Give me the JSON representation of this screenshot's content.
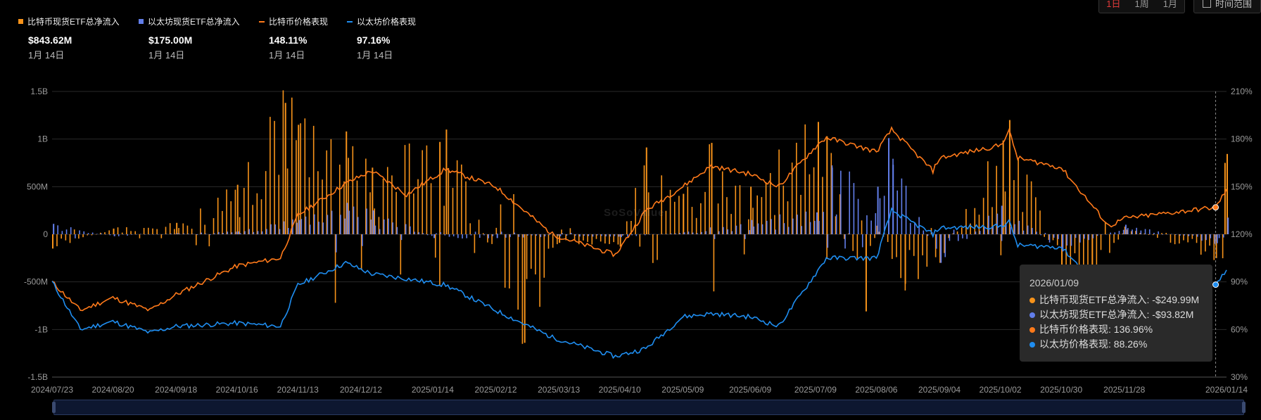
{
  "controls": {
    "range_buttons": [
      "1日",
      "1周",
      "1月"
    ],
    "time_button": "时间范围"
  },
  "legend": [
    {
      "label": "比特币现货ETF总净流入",
      "value": "$843.62M",
      "date": "1月 14日",
      "color": "#f7931a",
      "marker": "square"
    },
    {
      "label": "以太坊现货ETF总净流入",
      "value": "$175.00M",
      "date": "1月 14日",
      "color": "#627eea",
      "marker": "square"
    },
    {
      "label": "比特币价格表现",
      "value": "148.11%",
      "date": "1月 14日",
      "color": "#ff7a1a",
      "marker": "line"
    },
    {
      "label": "以太坊价格表现",
      "value": "97.16%",
      "date": "1月 14日",
      "color": "#1f8ef1",
      "marker": "line"
    }
  ],
  "watermark": "SoSoValue",
  "tooltip": {
    "date": "2026/01/09",
    "rows": [
      {
        "text": "比特币现货ETF总净流入: -$249.99M",
        "color": "#f7931a"
      },
      {
        "text": "以太坊现货ETF总净流入: -$93.82M",
        "color": "#627eea"
      },
      {
        "text": "比特币价格表现: 136.96%",
        "color": "#ff7a1a"
      },
      {
        "text": "以太坊价格表现: 88.26%",
        "color": "#1f8ef1"
      }
    ]
  },
  "chart_data": {
    "type": "bar",
    "x_ticks": [
      "2024/07/23",
      "2024/08/20",
      "2024/09/18",
      "2024/10/16",
      "2024/11/13",
      "2024/12/12",
      "2025/01/14",
      "2025/02/12",
      "2025/03/13",
      "2025/04/10",
      "2025/05/09",
      "2025/06/09",
      "2025/07/09",
      "2025/08/06",
      "2025/09/04",
      "2025/10/02",
      "2025/10/30",
      "2025/11/28",
      "2026/01/14"
    ],
    "y_left_ticks": [
      "1.5B",
      "1B",
      "500M",
      "0",
      "-500M",
      "-1B",
      "-1.5B"
    ],
    "y_left_range": [
      -1500,
      1500
    ],
    "y_left_unit": "M USD",
    "y_right_ticks": [
      "210%",
      "180%",
      "150%",
      "120%",
      "90%",
      "60%",
      "30%"
    ],
    "y_right_range": [
      30,
      210
    ],
    "grid": "horizontal",
    "legend_position": "top-left",
    "series": [
      {
        "name": "比特币价格表现",
        "type": "line",
        "axis": "right",
        "color": "#ff7a1a",
        "points": [
          [
            "2024/07/23",
            90
          ],
          [
            "2024/08/05",
            72
          ],
          [
            "2024/08/20",
            80
          ],
          [
            "2024/09/06",
            72
          ],
          [
            "2024/09/18",
            82
          ],
          [
            "2024/10/16",
            100
          ],
          [
            "2024/11/05",
            105
          ],
          [
            "2024/11/13",
            132
          ],
          [
            "2024/12/05",
            152
          ],
          [
            "2024/12/17",
            160
          ],
          [
            "2025/01/02",
            145
          ],
          [
            "2025/01/20",
            161
          ],
          [
            "2025/02/12",
            150
          ],
          [
            "2025/03/10",
            120
          ],
          [
            "2025/04/08",
            107
          ],
          [
            "2025/04/22",
            135
          ],
          [
            "2025/05/09",
            150
          ],
          [
            "2025/05/22",
            163
          ],
          [
            "2025/06/09",
            158
          ],
          [
            "2025/06/22",
            150
          ],
          [
            "2025/07/09",
            175
          ],
          [
            "2025/07/14",
            181
          ],
          [
            "2025/08/06",
            172
          ],
          [
            "2025/08/13",
            186
          ],
          [
            "2025/09/01",
            160
          ],
          [
            "2025/09/04",
            168
          ],
          [
            "2025/10/02",
            176
          ],
          [
            "2025/10/06",
            185
          ],
          [
            "2025/10/10",
            168
          ],
          [
            "2025/10/30",
            162
          ],
          [
            "2025/11/21",
            125
          ],
          [
            "2025/11/28",
            130
          ],
          [
            "2026/01/09",
            136.96
          ],
          [
            "2026/01/14",
            148.11
          ]
        ]
      },
      {
        "name": "以太坊价格表现",
        "type": "line",
        "axis": "right",
        "color": "#1f8ef1",
        "points": [
          [
            "2024/07/23",
            90
          ],
          [
            "2024/08/05",
            60
          ],
          [
            "2024/08/20",
            65
          ],
          [
            "2024/09/06",
            58
          ],
          [
            "2024/09/18",
            62
          ],
          [
            "2024/10/16",
            64
          ],
          [
            "2024/11/05",
            62
          ],
          [
            "2024/11/13",
            88
          ],
          [
            "2024/12/05",
            102
          ],
          [
            "2024/12/17",
            95
          ],
          [
            "2025/01/02",
            92
          ],
          [
            "2025/01/20",
            88
          ],
          [
            "2025/02/12",
            72
          ],
          [
            "2025/03/10",
            55
          ],
          [
            "2025/04/08",
            43
          ],
          [
            "2025/04/22",
            48
          ],
          [
            "2025/05/09",
            68
          ],
          [
            "2025/05/22",
            70
          ],
          [
            "2025/06/09",
            68
          ],
          [
            "2025/06/22",
            62
          ],
          [
            "2025/07/09",
            95
          ],
          [
            "2025/07/14",
            105
          ],
          [
            "2025/08/06",
            105
          ],
          [
            "2025/08/13",
            135
          ],
          [
            "2025/09/01",
            120
          ],
          [
            "2025/09/04",
            124
          ],
          [
            "2025/10/02",
            125
          ],
          [
            "2025/10/06",
            128
          ],
          [
            "2025/10/10",
            113
          ],
          [
            "2025/10/30",
            112
          ],
          [
            "2025/11/21",
            80
          ],
          [
            "2025/11/28",
            85
          ],
          [
            "2026/01/09",
            88.26
          ],
          [
            "2026/01/14",
            97.16
          ]
        ]
      },
      {
        "name": "比特币现货ETF总净流入",
        "type": "bar",
        "axis": "left",
        "color": "#f7931a",
        "note": "daily flows, values in $M",
        "points": [
          [
            "2024/07/23",
            -150
          ],
          [
            "2024/08/20",
            60
          ],
          [
            "2024/09/18",
            120
          ],
          [
            "2024/10/16",
            520
          ],
          [
            "2024/11/07",
            1380
          ],
          [
            "2024/11/13",
            1150
          ],
          [
            "2024/12/05",
            1080
          ],
          [
            "2024/12/17",
            700
          ],
          [
            "2025/01/17",
            970
          ],
          [
            "2025/01/20",
            1100
          ],
          [
            "2025/02/25",
            -1140
          ],
          [
            "2025/03/13",
            -90
          ],
          [
            "2025/04/10",
            -130
          ],
          [
            "2025/04/22",
            912
          ],
          [
            "2025/05/09",
            425
          ],
          [
            "2025/05/22",
            960
          ],
          [
            "2025/06/09",
            500
          ],
          [
            "2025/07/10",
            1180
          ],
          [
            "2025/07/14",
            1030
          ],
          [
            "2025/08/01",
            -810
          ],
          [
            "2025/08/06",
            90
          ],
          [
            "2025/08/19",
            -520
          ],
          [
            "2025/09/04",
            -300
          ],
          [
            "2025/10/03",
            985
          ],
          [
            "2025/10/06",
            1200
          ],
          [
            "2025/10/30",
            -470
          ],
          [
            "2025/11/13",
            -870
          ],
          [
            "2025/11/28",
            80
          ],
          [
            "2026/01/09",
            -249.99
          ],
          [
            "2026/01/13",
            750
          ],
          [
            "2026/01/14",
            843.62
          ]
        ]
      },
      {
        "name": "以太坊现货ETF总净流入",
        "type": "bar",
        "axis": "left",
        "color": "#627eea",
        "note": "daily flows, values in $M",
        "points": [
          [
            "2024/07/23",
            110
          ],
          [
            "2024/08/20",
            -20
          ],
          [
            "2024/09/18",
            10
          ],
          [
            "2024/10/16",
            30
          ],
          [
            "2024/11/13",
            150
          ],
          [
            "2024/12/05",
            330
          ],
          [
            "2024/12/17",
            250
          ],
          [
            "2025/01/14",
            -40
          ],
          [
            "2025/02/12",
            -40
          ],
          [
            "2025/03/13",
            -20
          ],
          [
            "2025/04/10",
            -30
          ],
          [
            "2025/05/09",
            20
          ],
          [
            "2025/06/09",
            150
          ],
          [
            "2025/07/09",
            230
          ],
          [
            "2025/07/16",
            700
          ],
          [
            "2025/08/06",
            500
          ],
          [
            "2025/08/11",
            1010
          ],
          [
            "2025/08/13",
            730
          ],
          [
            "2025/09/04",
            -300
          ],
          [
            "2025/10/02",
            300
          ],
          [
            "2025/10/30",
            -180
          ],
          [
            "2025/11/28",
            100
          ],
          [
            "2026/01/09",
            -93.82
          ],
          [
            "2026/01/14",
            175.0
          ]
        ]
      }
    ]
  }
}
